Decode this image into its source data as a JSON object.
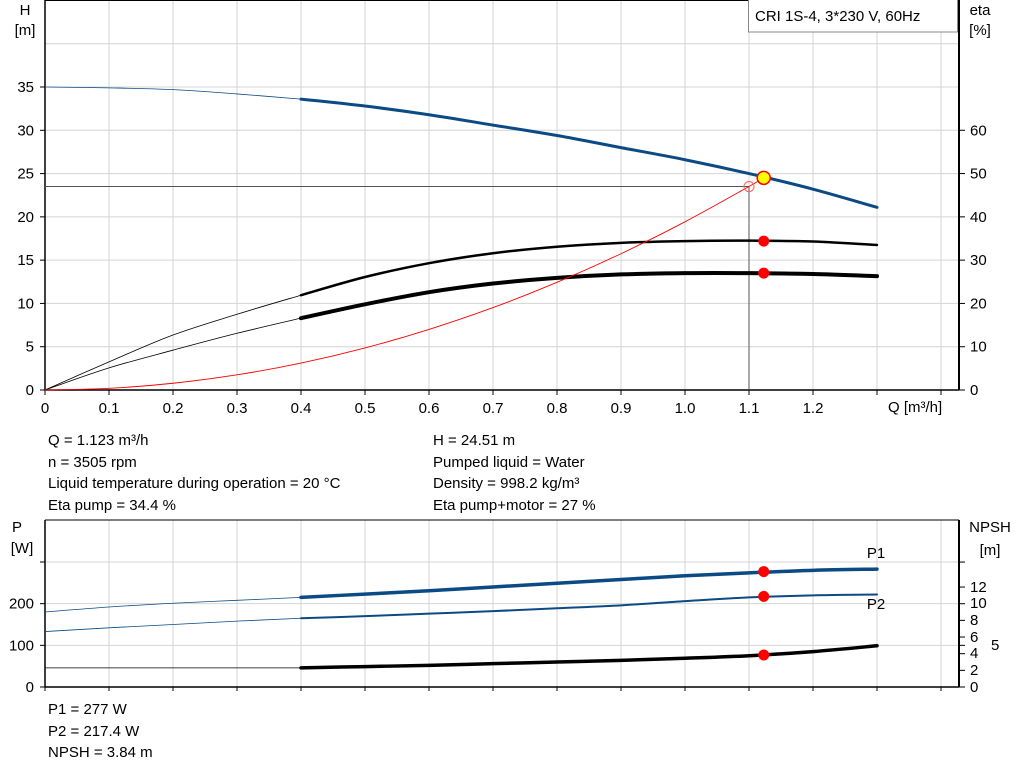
{
  "chart_data": [
    {
      "type": "line",
      "title": "CRI 1S-4, 3*230 V, 60Hz",
      "legend": "top-right",
      "grid": true,
      "xlabel": "Q [m³/h]",
      "ylabel_left": "H",
      "ylabel_left_unit": "[m]",
      "ylabel_right": "eta",
      "ylabel_right_unit": "[%]",
      "xlim": [
        0,
        1.4
      ],
      "ylim_left": [
        0,
        45
      ],
      "ylim_right": [
        0,
        90
      ],
      "x_ticks": [
        "0",
        "0.1",
        "0.2",
        "0.3",
        "0.4",
        "0.5",
        "0.6",
        "0.7",
        "0.8",
        "0.9",
        "1.0",
        "1.1",
        "1.2"
      ],
      "y_left_ticks": [
        "0",
        "5",
        "10",
        "15",
        "20",
        "25",
        "30",
        "35"
      ],
      "y_right_ticks": [
        "0",
        "10",
        "20",
        "30",
        "40",
        "50",
        "60"
      ],
      "series": [
        {
          "id": "head",
          "axis": "left",
          "color": "#0b4a84",
          "x": [
            0,
            0.1,
            0.2,
            0.3,
            0.4,
            0.5,
            0.6,
            0.7,
            0.8,
            0.9,
            1.0,
            1.1,
            1.2,
            1.3
          ],
          "y": [
            35,
            34.9,
            34.7,
            34.2,
            33.6,
            32.8,
            31.8,
            30.6,
            29.4,
            28.0,
            26.6,
            25.0,
            23.2,
            21.1
          ]
        },
        {
          "id": "eta-pump",
          "axis": "right",
          "color": "#000000",
          "x": [
            0,
            0.1,
            0.2,
            0.3,
            0.4,
            0.5,
            0.6,
            0.7,
            0.8,
            0.9,
            1.0,
            1.1,
            1.2,
            1.3
          ],
          "y": [
            0,
            6.5,
            12.7,
            17.5,
            21.9,
            26.1,
            29.3,
            31.6,
            33.1,
            34.0,
            34.4,
            34.5,
            34.3,
            33.5
          ]
        },
        {
          "id": "eta-pump-motor",
          "axis": "right",
          "color": "#000000",
          "x": [
            0,
            0.1,
            0.2,
            0.3,
            0.4,
            0.5,
            0.6,
            0.7,
            0.8,
            0.9,
            1.0,
            1.1,
            1.2,
            1.3
          ],
          "y": [
            0,
            5.1,
            9.2,
            13.1,
            16.6,
            19.8,
            22.6,
            24.6,
            25.9,
            26.7,
            27.0,
            27.0,
            26.8,
            26.3
          ]
        },
        {
          "id": "system-curve",
          "axis": "left",
          "color": "#ff0000",
          "x": [
            0,
            0.1,
            0.2,
            0.3,
            0.4,
            0.5,
            0.6,
            0.7,
            0.8,
            0.9,
            1.0,
            1.1,
            1.123
          ],
          "y": [
            0,
            0.19,
            0.78,
            1.75,
            3.11,
            4.86,
            7.0,
            9.52,
            12.44,
            15.74,
            19.43,
            23.51,
            24.51
          ]
        }
      ],
      "duty_range": [
        0.4,
        1.3
      ],
      "operating_point": {
        "Q": 1.123,
        "H": 24.51,
        "eta_pump": 34.4,
        "eta_pump_motor": 27
      },
      "reference_point": {
        "Q": 1.1,
        "H": 23.5
      }
    },
    {
      "type": "line",
      "grid": true,
      "xlim": [
        0,
        1.4
      ],
      "ylabel_left": "P",
      "ylabel_left_unit": "[W]",
      "ylabel_right": "NPSH",
      "ylabel_right_unit": "[m]",
      "ylim_left": [
        0,
        400
      ],
      "ylim_right": [
        0,
        20
      ],
      "y_left_ticks": [
        "0",
        "100",
        "200"
      ],
      "y_right_ticks": [
        "0",
        "2",
        "4",
        "5",
        "6",
        "8",
        "10",
        "12"
      ],
      "series": [
        {
          "id": "p1",
          "name": "P1",
          "axis": "left",
          "color": "#0b4a84",
          "x": [
            0,
            0.1,
            0.2,
            0.3,
            0.4,
            0.5,
            0.6,
            0.7,
            0.8,
            0.9,
            1.0,
            1.1,
            1.2,
            1.3
          ],
          "y": [
            180,
            192,
            201,
            208,
            215,
            223,
            231,
            240,
            249,
            258,
            267,
            274,
            280,
            283
          ]
        },
        {
          "id": "p2",
          "name": "P2",
          "axis": "left",
          "color": "#0b4a84",
          "x": [
            0,
            0.1,
            0.2,
            0.3,
            0.4,
            0.5,
            0.6,
            0.7,
            0.8,
            0.9,
            1.0,
            1.1,
            1.2,
            1.3
          ],
          "y": [
            133,
            142,
            150,
            158,
            165,
            170,
            176,
            182,
            189,
            196,
            206,
            215,
            220,
            222
          ]
        },
        {
          "id": "npsh",
          "axis": "right",
          "color": "#000000",
          "x": [
            0,
            0.1,
            0.2,
            0.3,
            0.4,
            0.5,
            0.6,
            0.7,
            0.8,
            0.9,
            1.0,
            1.1,
            1.2,
            1.3
          ],
          "y": [
            2.3,
            2.3,
            2.3,
            2.3,
            2.3,
            2.45,
            2.6,
            2.8,
            3.0,
            3.2,
            3.45,
            3.75,
            4.25,
            4.95
          ]
        }
      ],
      "duty_range": [
        0.4,
        1.3
      ],
      "operating_point": {
        "Q": 1.123,
        "P1": 277,
        "P2": 217.4,
        "NPSH": 3.84
      }
    }
  ],
  "info_top": {
    "left": [
      "Q = 1.123 m³/h",
      "n = 3505 rpm",
      "Liquid temperature during operation = 20 °C",
      "Eta pump = 34.4 %"
    ],
    "right": [
      "H = 24.51 m",
      "Pumped liquid = Water",
      "Density = 998.2 kg/m³",
      "Eta pump+motor = 27 %"
    ]
  },
  "info_bottom": [
    "P1 = 277 W",
    "P2 = 217.4 W",
    "NPSH = 3.84 m"
  ],
  "colors": {
    "head": "#0b4a84",
    "marker": "#ff0000",
    "operating_point_fill": "#ffff00",
    "grid": "#d4d4d4"
  }
}
